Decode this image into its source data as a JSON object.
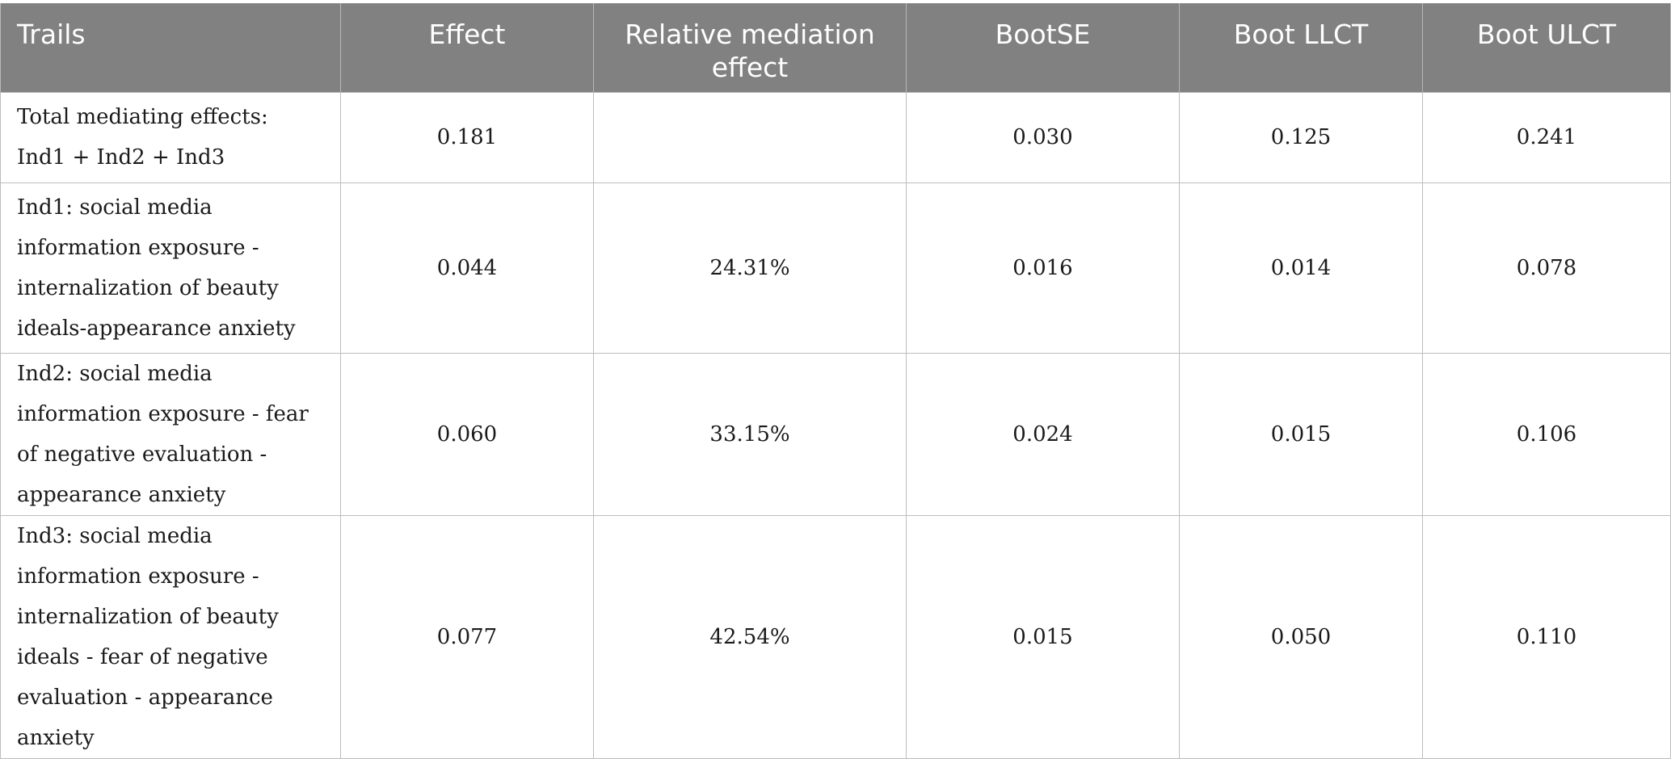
{
  "table": {
    "headers": [
      "Trails",
      "Effect",
      "Relative mediation effect",
      "BootSE",
      "Boot LLCT",
      "Boot ULCT"
    ],
    "rows": [
      {
        "trail_line1": "Total mediating effects:",
        "trail_line2": "Ind1 + Ind2 + Ind3",
        "effect": "0.181",
        "relative": "",
        "bootse": "0.030",
        "llct": "0.125",
        "ulct": "0.241"
      },
      {
        "trail": "Ind1: social media information exposure - internalization of beauty ideals-appearance anxiety",
        "effect": "0.044",
        "relative": "24.31%",
        "bootse": "0.016",
        "llct": "0.014",
        "ulct": "0.078"
      },
      {
        "trail": "Ind2: social media information exposure - fear of negative evaluation - appearance anxiety",
        "effect": "0.060",
        "relative": "33.15%",
        "bootse": "0.024",
        "llct": "0.015",
        "ulct": "0.106"
      },
      {
        "trail": "Ind3: social media information exposure - internalization of beauty ideals - fear of negative evaluation - appearance anxiety",
        "effect": "0.077",
        "relative": "42.54%",
        "bootse": "0.015",
        "llct": "0.050",
        "ulct": "0.110"
      }
    ]
  },
  "colors": {
    "header_bg": "#808180",
    "header_text": "#ffffff",
    "border": "#bdbdbd"
  }
}
